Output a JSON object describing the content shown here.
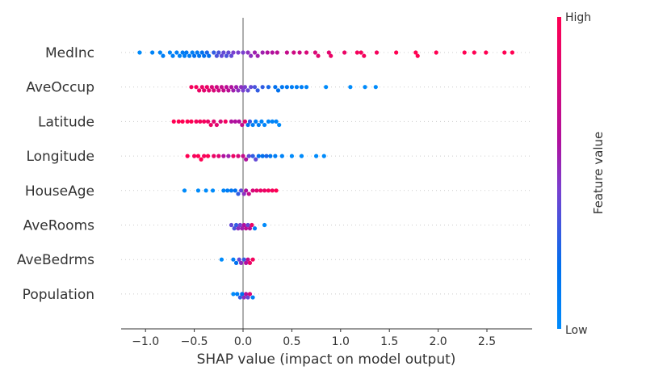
{
  "chart_data": {
    "type": "scatter",
    "subtype": "beeswarm",
    "title": "",
    "xlabel": "SHAP value (impact on model output)",
    "ylabel": "",
    "xlim": [
      -1.25,
      2.95
    ],
    "x_ticks": [
      -1.0,
      -0.5,
      0.0,
      0.5,
      1.0,
      1.5,
      2.0,
      2.5
    ],
    "x_tick_labels": [
      "−1.0",
      "−0.5",
      "0.0",
      "0.5",
      "1.0",
      "1.5",
      "2.0",
      "2.5"
    ],
    "grid": false,
    "colorbar": {
      "label": "Feature value",
      "high_label": "High",
      "low_label": "Low",
      "low_color": "#008bfb",
      "high_color": "#ff0052",
      "placement": "right"
    },
    "features": [
      {
        "name": "MedInc",
        "points": [
          [
            -1.06,
            0.0
          ],
          [
            -0.93,
            0.05
          ],
          [
            -0.85,
            0.05
          ],
          [
            -0.82,
            0.1
          ],
          [
            -0.75,
            0.05
          ],
          [
            -0.72,
            0.1
          ],
          [
            -0.68,
            0.1
          ],
          [
            -0.65,
            0.05
          ],
          [
            -0.62,
            0.12
          ],
          [
            -0.6,
            0.1
          ],
          [
            -0.58,
            0.15
          ],
          [
            -0.55,
            0.1
          ],
          [
            -0.52,
            0.1
          ],
          [
            -0.5,
            0.2
          ],
          [
            -0.47,
            0.15
          ],
          [
            -0.45,
            0.15
          ],
          [
            -0.42,
            0.2
          ],
          [
            -0.4,
            0.2
          ],
          [
            -0.37,
            0.25
          ],
          [
            -0.35,
            0.2
          ],
          [
            -0.3,
            0.3
          ],
          [
            -0.27,
            0.35
          ],
          [
            -0.25,
            0.35
          ],
          [
            -0.22,
            0.4
          ],
          [
            -0.2,
            0.4
          ],
          [
            -0.17,
            0.35
          ],
          [
            -0.15,
            0.4
          ],
          [
            -0.12,
            0.4
          ],
          [
            -0.1,
            0.45
          ],
          [
            -0.05,
            0.45
          ],
          [
            0.0,
            0.45
          ],
          [
            0.05,
            0.5
          ],
          [
            0.08,
            0.5
          ],
          [
            0.12,
            0.55
          ],
          [
            0.15,
            0.55
          ],
          [
            0.2,
            0.55
          ],
          [
            0.25,
            0.6
          ],
          [
            0.3,
            0.6
          ],
          [
            0.35,
            0.65
          ],
          [
            0.45,
            0.7
          ],
          [
            0.52,
            0.75
          ],
          [
            0.58,
            0.75
          ],
          [
            0.65,
            0.8
          ],
          [
            0.74,
            0.8
          ],
          [
            0.77,
            0.85
          ],
          [
            0.88,
            0.85
          ],
          [
            0.9,
            0.9
          ],
          [
            1.04,
            0.9
          ],
          [
            1.17,
            0.95
          ],
          [
            1.21,
            0.95
          ],
          [
            1.24,
            0.95
          ],
          [
            1.37,
            0.95
          ],
          [
            1.57,
            1.0
          ],
          [
            1.77,
            1.0
          ],
          [
            1.79,
            1.0
          ],
          [
            1.98,
            1.0
          ],
          [
            2.27,
            1.0
          ],
          [
            2.37,
            1.0
          ],
          [
            2.49,
            1.0
          ],
          [
            2.68,
            1.0
          ],
          [
            2.76,
            1.0
          ]
        ]
      },
      {
        "name": "AveOccup",
        "points": [
          [
            -0.53,
            0.95
          ],
          [
            -0.48,
            0.95
          ],
          [
            -0.45,
            0.9
          ],
          [
            -0.42,
            0.9
          ],
          [
            -0.4,
            0.85
          ],
          [
            -0.37,
            0.9
          ],
          [
            -0.35,
            0.85
          ],
          [
            -0.32,
            0.8
          ],
          [
            -0.3,
            0.8
          ],
          [
            -0.27,
            0.75
          ],
          [
            -0.25,
            0.75
          ],
          [
            -0.22,
            0.7
          ],
          [
            -0.2,
            0.7
          ],
          [
            -0.17,
            0.65
          ],
          [
            -0.15,
            0.65
          ],
          [
            -0.12,
            0.6
          ],
          [
            -0.1,
            0.55
          ],
          [
            -0.07,
            0.55
          ],
          [
            -0.05,
            0.5
          ],
          [
            -0.02,
            0.5
          ],
          [
            0.0,
            0.45
          ],
          [
            0.02,
            0.45
          ],
          [
            0.05,
            0.4
          ],
          [
            0.08,
            0.4
          ],
          [
            0.12,
            0.35
          ],
          [
            0.15,
            0.3
          ],
          [
            0.2,
            0.3
          ],
          [
            0.26,
            0.25
          ],
          [
            0.33,
            0.2
          ],
          [
            0.36,
            0.2
          ],
          [
            0.4,
            0.15
          ],
          [
            0.45,
            0.15
          ],
          [
            0.5,
            0.1
          ],
          [
            0.55,
            0.1
          ],
          [
            0.6,
            0.1
          ],
          [
            0.65,
            0.05
          ],
          [
            0.85,
            0.0
          ],
          [
            1.1,
            0.0
          ],
          [
            1.25,
            0.0
          ],
          [
            1.36,
            0.0
          ]
        ]
      },
      {
        "name": "Latitude",
        "points": [
          [
            -0.71,
            1.0
          ],
          [
            -0.66,
            1.0
          ],
          [
            -0.62,
            1.0
          ],
          [
            -0.57,
            1.0
          ],
          [
            -0.53,
            1.0
          ],
          [
            -0.48,
            0.95
          ],
          [
            -0.44,
            0.95
          ],
          [
            -0.4,
            0.95
          ],
          [
            -0.36,
            0.9
          ],
          [
            -0.33,
            0.9
          ],
          [
            -0.3,
            0.85
          ],
          [
            -0.27,
            0.85
          ],
          [
            -0.23,
            0.8
          ],
          [
            -0.18,
            0.95
          ],
          [
            -0.12,
            0.6
          ],
          [
            -0.08,
            0.6
          ],
          [
            -0.04,
            0.6
          ],
          [
            -0.01,
            0.7
          ],
          [
            0.02,
            0.85
          ],
          [
            0.05,
            0.2
          ],
          [
            0.07,
            0.3
          ],
          [
            0.1,
            0.1
          ],
          [
            0.13,
            0.1
          ],
          [
            0.16,
            0.1
          ],
          [
            0.19,
            0.05
          ],
          [
            0.22,
            0.05
          ],
          [
            0.26,
            0.05
          ],
          [
            0.3,
            0.05
          ],
          [
            0.34,
            0.05
          ],
          [
            0.37,
            0.0
          ]
        ]
      },
      {
        "name": "Longitude",
        "points": [
          [
            -0.57,
            1.0
          ],
          [
            -0.5,
            0.95
          ],
          [
            -0.46,
            1.0
          ],
          [
            -0.43,
            1.0
          ],
          [
            -0.4,
            0.95
          ],
          [
            -0.36,
            1.0
          ],
          [
            -0.3,
            0.9
          ],
          [
            -0.25,
            0.85
          ],
          [
            -0.2,
            0.6
          ],
          [
            -0.15,
            0.55
          ],
          [
            -0.1,
            0.9
          ],
          [
            -0.05,
            0.8
          ],
          [
            0.0,
            0.7
          ],
          [
            0.03,
            0.6
          ],
          [
            0.06,
            0.4
          ],
          [
            0.1,
            0.3
          ],
          [
            0.13,
            0.4
          ],
          [
            0.16,
            0.2
          ],
          [
            0.2,
            0.2
          ],
          [
            0.24,
            0.25
          ],
          [
            0.28,
            0.15
          ],
          [
            0.33,
            0.1
          ],
          [
            0.4,
            0.05
          ],
          [
            0.5,
            0.0
          ],
          [
            0.6,
            0.0
          ],
          [
            0.75,
            0.0
          ],
          [
            0.83,
            0.0
          ]
        ]
      },
      {
        "name": "HouseAge",
        "points": [
          [
            -0.6,
            0.0
          ],
          [
            -0.46,
            0.0
          ],
          [
            -0.38,
            0.0
          ],
          [
            -0.31,
            0.0
          ],
          [
            -0.2,
            0.05
          ],
          [
            -0.16,
            0.1
          ],
          [
            -0.12,
            0.15
          ],
          [
            -0.08,
            0.2
          ],
          [
            -0.05,
            0.3
          ],
          [
            -0.02,
            0.4
          ],
          [
            0.01,
            0.5
          ],
          [
            0.03,
            0.6
          ],
          [
            0.06,
            0.7
          ],
          [
            0.1,
            0.8
          ],
          [
            0.14,
            0.85
          ],
          [
            0.18,
            0.9
          ],
          [
            0.22,
            0.9
          ],
          [
            0.26,
            0.95
          ],
          [
            0.3,
            0.95
          ],
          [
            0.34,
            1.0
          ]
        ]
      },
      {
        "name": "AveRooms",
        "points": [
          [
            -0.12,
            0.4
          ],
          [
            -0.09,
            0.35
          ],
          [
            -0.07,
            0.3
          ],
          [
            -0.05,
            0.5
          ],
          [
            -0.03,
            0.45
          ],
          [
            -0.01,
            0.55
          ],
          [
            0.01,
            0.6
          ],
          [
            0.03,
            0.65
          ],
          [
            0.05,
            0.4
          ],
          [
            0.07,
            0.6
          ],
          [
            0.09,
            0.9
          ],
          [
            0.12,
            0.1
          ],
          [
            0.22,
            0.0
          ]
        ]
      },
      {
        "name": "AveBedrms",
        "points": [
          [
            -0.22,
            0.0
          ],
          [
            -0.1,
            0.1
          ],
          [
            -0.07,
            0.2
          ],
          [
            -0.04,
            0.4
          ],
          [
            -0.02,
            0.5
          ],
          [
            0.01,
            0.3
          ],
          [
            0.03,
            0.6
          ],
          [
            0.05,
            0.7
          ],
          [
            0.07,
            0.9
          ],
          [
            0.1,
            0.95
          ]
        ]
      },
      {
        "name": "Population",
        "points": [
          [
            -0.1,
            0.0
          ],
          [
            -0.06,
            0.1
          ],
          [
            -0.03,
            0.3
          ],
          [
            -0.01,
            0.2
          ],
          [
            0.01,
            0.5
          ],
          [
            0.03,
            0.6
          ],
          [
            0.05,
            0.4
          ],
          [
            0.07,
            0.8
          ],
          [
            0.1,
            0.1
          ]
        ]
      }
    ]
  }
}
